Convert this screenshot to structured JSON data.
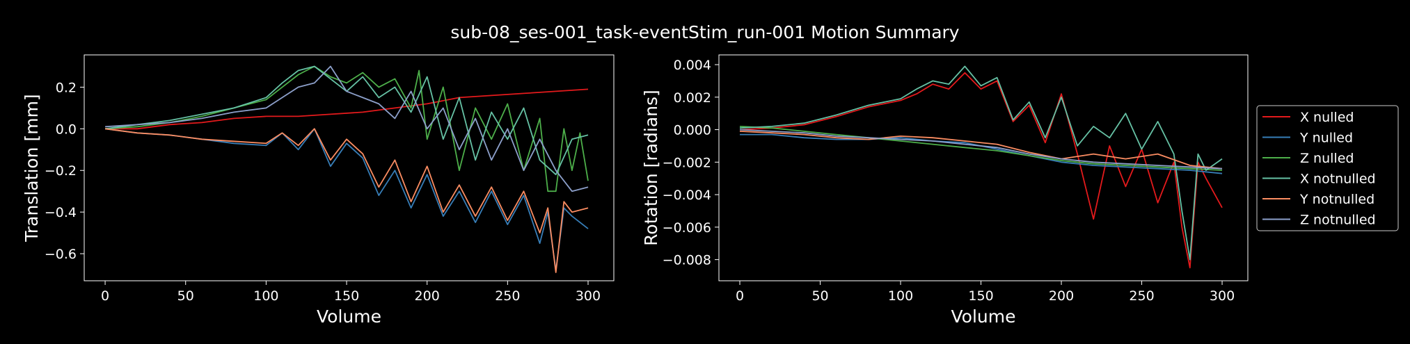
{
  "figure": {
    "title": "sub-08_ses-001_task-eventStim_run-001 Motion Summary",
    "background": "#000000",
    "text_color": "#ffffff"
  },
  "chart_data": [
    {
      "type": "line",
      "xlabel": "Volume",
      "ylabel": "Translation [mm]",
      "xlim": [
        -13,
        316
      ],
      "ylim": [
        -0.73,
        0.355
      ],
      "xticks": [
        0,
        50,
        100,
        150,
        200,
        250,
        300
      ],
      "yticks": [
        -0.6,
        -0.4,
        -0.2,
        0.0,
        0.2
      ],
      "ytick_labels": [
        "−0.6",
        "−0.4",
        "−0.2",
        "0.0",
        "0.2"
      ],
      "grid": false,
      "series": [
        {
          "name": "X nulled",
          "color": "#e41a1c",
          "x": [
            0,
            20,
            40,
            60,
            80,
            100,
            120,
            140,
            160,
            180,
            200,
            220,
            240,
            260,
            280,
            300
          ],
          "y": [
            0.0,
            0.0,
            0.02,
            0.03,
            0.05,
            0.06,
            0.06,
            0.07,
            0.08,
            0.1,
            0.12,
            0.15,
            0.16,
            0.17,
            0.18,
            0.19
          ]
        },
        {
          "name": "Y nulled",
          "color": "#377eb8",
          "x": [
            0,
            20,
            40,
            60,
            80,
            100,
            110,
            120,
            130,
            140,
            150,
            160,
            170,
            180,
            190,
            200,
            210,
            220,
            230,
            240,
            250,
            260,
            270,
            275,
            280,
            285,
            290,
            300
          ],
          "y": [
            0.0,
            -0.02,
            -0.03,
            -0.05,
            -0.07,
            -0.08,
            -0.02,
            -0.1,
            0.0,
            -0.18,
            -0.07,
            -0.14,
            -0.32,
            -0.2,
            -0.38,
            -0.22,
            -0.42,
            -0.3,
            -0.45,
            -0.3,
            -0.46,
            -0.32,
            -0.55,
            -0.4,
            -0.68,
            -0.38,
            -0.42,
            -0.48
          ]
        },
        {
          "name": "Z nulled",
          "color": "#4daf4a",
          "x": [
            0,
            20,
            40,
            60,
            80,
            100,
            110,
            120,
            130,
            140,
            150,
            160,
            170,
            180,
            190,
            195,
            200,
            210,
            220,
            230,
            240,
            250,
            260,
            270,
            275,
            280,
            285,
            290,
            295,
            300
          ],
          "y": [
            0.0,
            0.01,
            0.03,
            0.06,
            0.1,
            0.14,
            0.2,
            0.26,
            0.3,
            0.25,
            0.22,
            0.27,
            0.2,
            0.24,
            0.1,
            0.28,
            -0.05,
            0.2,
            -0.2,
            0.1,
            -0.05,
            0.12,
            -0.2,
            0.05,
            -0.3,
            -0.3,
            0.0,
            -0.2,
            -0.02,
            -0.25
          ]
        },
        {
          "name": "X notnulled",
          "color": "#66c2a5",
          "x": [
            0,
            20,
            40,
            60,
            80,
            100,
            110,
            120,
            130,
            140,
            150,
            160,
            170,
            180,
            190,
            200,
            210,
            220,
            230,
            240,
            250,
            260,
            270,
            280,
            290,
            300
          ],
          "y": [
            0.0,
            0.02,
            0.04,
            0.07,
            0.1,
            0.15,
            0.22,
            0.28,
            0.3,
            0.24,
            0.18,
            0.25,
            0.15,
            0.2,
            0.08,
            0.25,
            -0.05,
            0.15,
            -0.15,
            0.08,
            -0.05,
            0.1,
            -0.15,
            -0.22,
            -0.05,
            -0.03
          ]
        },
        {
          "name": "Y notnulled",
          "color": "#fc8d62",
          "x": [
            0,
            20,
            40,
            60,
            80,
            100,
            110,
            120,
            130,
            140,
            150,
            160,
            170,
            180,
            190,
            200,
            210,
            220,
            230,
            240,
            250,
            260,
            270,
            275,
            280,
            285,
            290,
            300
          ],
          "y": [
            0.0,
            -0.02,
            -0.03,
            -0.05,
            -0.06,
            -0.07,
            -0.02,
            -0.08,
            0.0,
            -0.15,
            -0.05,
            -0.12,
            -0.28,
            -0.15,
            -0.35,
            -0.18,
            -0.4,
            -0.27,
            -0.42,
            -0.28,
            -0.44,
            -0.3,
            -0.5,
            -0.38,
            -0.69,
            -0.35,
            -0.4,
            -0.38
          ]
        },
        {
          "name": "Z notnulled",
          "color": "#8da0cb",
          "x": [
            0,
            20,
            40,
            60,
            80,
            100,
            110,
            120,
            130,
            140,
            150,
            160,
            170,
            180,
            190,
            200,
            210,
            220,
            230,
            240,
            250,
            260,
            270,
            280,
            290,
            300
          ],
          "y": [
            0.01,
            0.02,
            0.03,
            0.05,
            0.08,
            0.1,
            0.15,
            0.2,
            0.22,
            0.3,
            0.18,
            0.15,
            0.12,
            0.05,
            0.18,
            0.0,
            0.1,
            -0.1,
            0.05,
            -0.15,
            0.0,
            -0.2,
            -0.05,
            -0.2,
            -0.3,
            -0.28
          ]
        }
      ]
    },
    {
      "type": "line",
      "xlabel": "Volume",
      "ylabel": "Rotation [radians]",
      "xlim": [
        -13,
        316
      ],
      "ylim": [
        -0.0093,
        0.0046
      ],
      "xticks": [
        0,
        50,
        100,
        150,
        200,
        250,
        300
      ],
      "yticks": [
        -0.008,
        -0.006,
        -0.004,
        -0.002,
        0.0,
        0.002,
        0.004
      ],
      "ytick_labels": [
        "−0.008",
        "−0.006",
        "−0.004",
        "−0.002",
        "0.000",
        "0.002",
        "0.004"
      ],
      "grid": false,
      "legend": "outside-right",
      "series": [
        {
          "name": "X nulled",
          "color": "#e41a1c",
          "x": [
            0,
            20,
            40,
            60,
            80,
            100,
            110,
            120,
            130,
            140,
            150,
            160,
            170,
            180,
            190,
            200,
            210,
            220,
            230,
            240,
            250,
            260,
            270,
            275,
            280,
            285,
            290,
            300
          ],
          "y": [
            0.0,
            0.0001,
            0.0003,
            0.0008,
            0.0014,
            0.0018,
            0.0022,
            0.0028,
            0.0025,
            0.0035,
            0.0025,
            0.003,
            0.0005,
            0.0015,
            -0.0008,
            0.0022,
            -0.0015,
            -0.0055,
            -0.001,
            -0.0035,
            -0.0012,
            -0.0045,
            -0.002,
            -0.006,
            -0.0085,
            -0.002,
            -0.003,
            -0.0048
          ]
        },
        {
          "name": "Y nulled",
          "color": "#377eb8",
          "x": [
            0,
            20,
            40,
            60,
            80,
            100,
            120,
            140,
            160,
            180,
            200,
            220,
            240,
            260,
            280,
            300
          ],
          "y": [
            -0.0003,
            -0.0003,
            -0.0005,
            -0.0006,
            -0.0006,
            -0.0005,
            -0.0007,
            -0.0008,
            -0.0012,
            -0.0016,
            -0.002,
            -0.0022,
            -0.0023,
            -0.0024,
            -0.0025,
            -0.0027
          ]
        },
        {
          "name": "Z nulled",
          "color": "#4daf4a",
          "x": [
            0,
            20,
            40,
            60,
            80,
            100,
            120,
            140,
            160,
            180,
            200,
            220,
            240,
            260,
            280,
            300
          ],
          "y": [
            0.0002,
            0.0001,
            -0.0001,
            -0.0003,
            -0.0005,
            -0.0007,
            -0.0009,
            -0.0011,
            -0.0013,
            -0.0016,
            -0.0019,
            -0.0021,
            -0.0022,
            -0.0023,
            -0.0024,
            -0.0025
          ]
        },
        {
          "name": "X notnulled",
          "color": "#66c2a5",
          "x": [
            0,
            20,
            40,
            60,
            80,
            100,
            110,
            120,
            130,
            140,
            150,
            160,
            170,
            180,
            190,
            200,
            210,
            220,
            230,
            240,
            250,
            260,
            270,
            275,
            280,
            285,
            290,
            300
          ],
          "y": [
            0.0001,
            0.0002,
            0.0004,
            0.0009,
            0.0015,
            0.0019,
            0.0025,
            0.003,
            0.0028,
            0.0039,
            0.0027,
            0.0032,
            0.0006,
            0.0017,
            -0.0005,
            0.002,
            -0.001,
            0.0002,
            -0.0005,
            0.001,
            -0.0012,
            0.0005,
            -0.0015,
            -0.005,
            -0.008,
            -0.0015,
            -0.0025,
            -0.0018
          ]
        },
        {
          "name": "Y notnulled",
          "color": "#fc8d62",
          "x": [
            0,
            20,
            40,
            60,
            80,
            100,
            120,
            140,
            160,
            180,
            200,
            220,
            240,
            260,
            280,
            300
          ],
          "y": [
            -0.0001,
            -0.0002,
            -0.0003,
            -0.0005,
            -0.0006,
            -0.0004,
            -0.0005,
            -0.0007,
            -0.0009,
            -0.0014,
            -0.0018,
            -0.0015,
            -0.0018,
            -0.0015,
            -0.0022,
            -0.0024
          ]
        },
        {
          "name": "Z notnulled",
          "color": "#8da0cb",
          "x": [
            0,
            20,
            40,
            60,
            80,
            100,
            120,
            140,
            160,
            180,
            200,
            220,
            240,
            260,
            280,
            300
          ],
          "y": [
            0.0,
            -0.0001,
            -0.0002,
            -0.0004,
            -0.0005,
            -0.0006,
            -0.0007,
            -0.0009,
            -0.0011,
            -0.0015,
            -0.0018,
            -0.002,
            -0.0021,
            -0.0022,
            -0.0023,
            -0.0024
          ]
        }
      ]
    }
  ]
}
